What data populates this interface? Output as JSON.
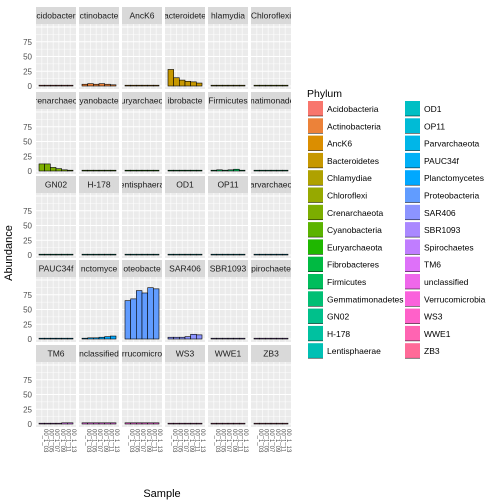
{
  "chart_data": {
    "type": "bar",
    "layout": "faceted-grid",
    "xlabel": "Sample",
    "ylabel": "Abundance",
    "ylim": [
      0,
      100
    ],
    "yticks": [
      0,
      25,
      50,
      75
    ],
    "legend": {
      "title": "Phylum",
      "placement": "right"
    },
    "sample_labels": [
      "00_1_03",
      "00_1_05",
      "00_1_07",
      "00_1_09",
      "00_1_11",
      "00_1_13"
    ],
    "facets": [
      {
        "name": "Acidobacteria",
        "strip": "cidobacter",
        "color": "#F8766D",
        "values": [
          0.5,
          0.5,
          0.5,
          0.5,
          0.5,
          0.5
        ]
      },
      {
        "name": "Actinobacteria",
        "strip": "ctinobacte",
        "color": "#EC8239",
        "values": [
          3,
          4,
          3,
          4,
          3,
          2
        ]
      },
      {
        "name": "AncK6",
        "strip": "AncK6",
        "color": "#DB8E00",
        "values": [
          0.5,
          0.5,
          0.5,
          0.5,
          0.5,
          0.5
        ]
      },
      {
        "name": "Bacteroidetes",
        "strip": "acteroidete",
        "color": "#C79800",
        "values": [
          28,
          14,
          10,
          8,
          7,
          5
        ]
      },
      {
        "name": "Chlamydiae",
        "strip": "hlamydia",
        "color": "#AFA100",
        "values": [
          0.5,
          0.5,
          0.5,
          0.5,
          0.5,
          0.5
        ]
      },
      {
        "name": "Chloroflexi",
        "strip": "Chloroflexi",
        "color": "#96A900",
        "values": [
          1,
          1,
          1,
          1,
          1,
          1
        ]
      },
      {
        "name": "Crenarchaeota",
        "strip": "renarchaeo",
        "color": "#7CAE00",
        "values": [
          12,
          12,
          6,
          4,
          2,
          1
        ]
      },
      {
        "name": "Cyanobacteria",
        "strip": "yanobacte",
        "color": "#5BB300",
        "values": [
          0.5,
          0.5,
          0.5,
          0.5,
          0.5,
          0.5
        ]
      },
      {
        "name": "Euryarchaeota",
        "strip": "uryarchaeo",
        "color": "#1FB700",
        "values": [
          0.5,
          0.5,
          0.5,
          0.5,
          0.5,
          0.5
        ]
      },
      {
        "name": "Fibrobacteres",
        "strip": "ibrobacte",
        "color": "#00BA42",
        "values": [
          0.5,
          0.5,
          0.5,
          0.5,
          0.5,
          0.5
        ]
      },
      {
        "name": "Firmicutes",
        "strip": "Firmicutes",
        "color": "#00BD5C",
        "values": [
          1,
          2,
          1,
          2,
          3,
          1
        ]
      },
      {
        "name": "Gemmatimonadetes",
        "strip": "matimonade",
        "color": "#00BF74",
        "values": [
          0.5,
          0.5,
          0.5,
          0.5,
          0.5,
          0.5
        ]
      },
      {
        "name": "GN02",
        "strip": "GN02",
        "color": "#00C08B",
        "values": [
          0.5,
          0.5,
          0.5,
          0.5,
          0.5,
          0.5
        ]
      },
      {
        "name": "H-178",
        "strip": "H-178",
        "color": "#00C1A0",
        "values": [
          0.5,
          0.5,
          0.5,
          0.5,
          0.5,
          0.5
        ]
      },
      {
        "name": "Lentisphaerae",
        "strip": "entisphaera",
        "color": "#00C0B4",
        "values": [
          0.5,
          0.5,
          0.5,
          0.5,
          0.5,
          0.5
        ]
      },
      {
        "name": "OD1",
        "strip": "OD1",
        "color": "#00BFC4",
        "values": [
          0.5,
          0.5,
          0.5,
          0.5,
          0.5,
          0.5
        ]
      },
      {
        "name": "OP11",
        "strip": "OP11",
        "color": "#00BBD6",
        "values": [
          0.5,
          0.5,
          0.5,
          0.5,
          0.5,
          0.5
        ]
      },
      {
        "name": "Parvarchaeota",
        "strip": "arvarchaeo",
        "color": "#00B6E8",
        "values": [
          0.5,
          0.5,
          0.5,
          0.5,
          0.5,
          0.5
        ]
      },
      {
        "name": "PAUC34f",
        "strip": "PAUC34f",
        "color": "#00B0F6",
        "values": [
          0.5,
          0.5,
          0.5,
          0.5,
          0.5,
          0.5
        ]
      },
      {
        "name": "Planctomycetes",
        "strip": "nctomyce",
        "color": "#00A8FF",
        "values": [
          1,
          2,
          2,
          3,
          4,
          5
        ]
      },
      {
        "name": "Proteobacteria",
        "strip": "oteobacte",
        "color": "#619CFF",
        "values": [
          65,
          68,
          82,
          78,
          87,
          85
        ]
      },
      {
        "name": "SAR406",
        "strip": "SAR406",
        "color": "#8C94FF",
        "values": [
          3,
          3,
          3,
          4,
          8,
          7
        ]
      },
      {
        "name": "SBR1093",
        "strip": "SBR1093",
        "color": "#AA88FF",
        "values": [
          0.5,
          0.5,
          0.5,
          0.5,
          0.5,
          0.5
        ]
      },
      {
        "name": "Spirochaetes",
        "strip": "pirochaete",
        "color": "#C07DFF",
        "values": [
          0.5,
          0.5,
          0.5,
          0.5,
          0.5,
          0.5
        ]
      },
      {
        "name": "TM6",
        "strip": "TM6",
        "color": "#DE71F9",
        "values": [
          0.5,
          0.5,
          1,
          1,
          2,
          2
        ]
      },
      {
        "name": "unclassified",
        "strip": "nclassified",
        "color": "#EF67EB",
        "values": [
          2,
          2,
          2,
          2,
          2,
          2
        ]
      },
      {
        "name": "Verrucomicrobia",
        "strip": "rrucomicro",
        "color": "#FA62DC",
        "values": [
          2,
          2,
          2,
          2,
          2,
          2
        ]
      },
      {
        "name": "WS3",
        "strip": "WS3",
        "color": "#FF61C9",
        "values": [
          0.5,
          0.5,
          0.5,
          0.5,
          0.5,
          0.5
        ]
      },
      {
        "name": "WWE1",
        "strip": "WWE1",
        "color": "#FF64B2",
        "values": [
          0.5,
          0.5,
          0.5,
          0.5,
          0.5,
          0.5
        ]
      },
      {
        "name": "ZB3",
        "strip": "ZB3",
        "color": "#FF6A98",
        "values": [
          0.5,
          0.5,
          0.5,
          0.5,
          0.5,
          0.5
        ]
      }
    ]
  }
}
